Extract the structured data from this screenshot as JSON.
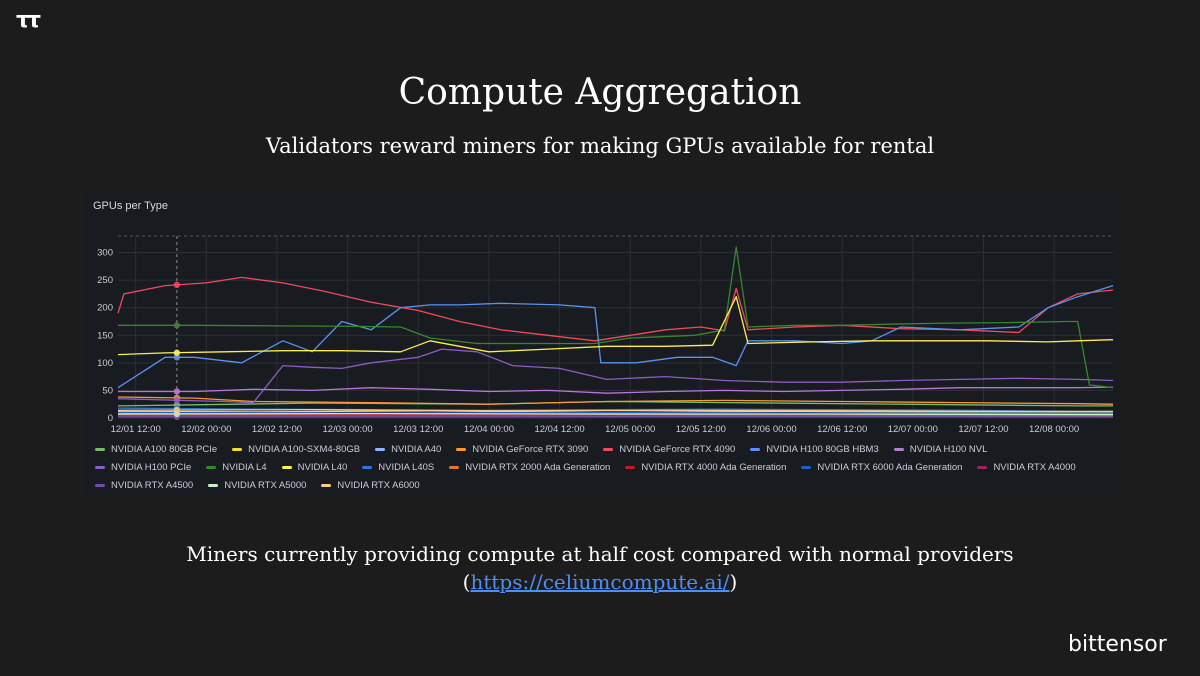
{
  "slide": {
    "logo_mark": "ττ",
    "title": "Compute Aggregation",
    "subtitle": "Validators reward miners for making GPUs available for rental",
    "footer_line1": "Miners currently providing compute at half cost compared with normal providers",
    "footer_paren_open": "(",
    "footer_link": "https://celiumcompute.ai/",
    "footer_paren_close": ")",
    "brand": "bittensor"
  },
  "chart_data": {
    "type": "line",
    "title": "GPUs per Type",
    "xlabel": "",
    "ylabel": "",
    "ylim": [
      0,
      330
    ],
    "y_ticks": [
      0,
      50,
      100,
      150,
      200,
      250,
      300
    ],
    "x_range_hours": [
      -3,
      166
    ],
    "x_ticks": [
      "12/01 12:00",
      "12/02 00:00",
      "12/02 12:00",
      "12/03 00:00",
      "12/03 12:00",
      "12/04 00:00",
      "12/04 12:00",
      "12/05 00:00",
      "12/05 12:00",
      "12/06 00:00",
      "12/06 12:00",
      "12/07 00:00",
      "12/07 12:00",
      "12/08 00:00"
    ],
    "grid": true,
    "legend_position": "bottom",
    "series": [
      {
        "name": "NVIDIA A100 80GB PCIe",
        "color": "#73bf69",
        "points": [
          [
            -3,
            22
          ],
          [
            10,
            24
          ],
          [
            30,
            27
          ],
          [
            60,
            25
          ],
          [
            80,
            30
          ],
          [
            100,
            28
          ],
          [
            130,
            25
          ],
          [
            160,
            22
          ],
          [
            166,
            22
          ]
        ]
      },
      {
        "name": "NVIDIA A100-SXM4-80GB",
        "color": "#fade2a",
        "points": [
          [
            -3,
            12
          ],
          [
            20,
            11
          ],
          [
            50,
            13
          ],
          [
            80,
            10
          ],
          [
            110,
            12
          ],
          [
            140,
            11
          ],
          [
            166,
            10
          ]
        ]
      },
      {
        "name": "NVIDIA A40",
        "color": "#8ab8ff",
        "points": [
          [
            -3,
            8
          ],
          [
            30,
            9
          ],
          [
            60,
            7
          ],
          [
            90,
            8
          ],
          [
            120,
            9
          ],
          [
            150,
            8
          ],
          [
            166,
            7
          ]
        ]
      },
      {
        "name": "NVIDIA GeForce RTX 3090",
        "color": "#ff9830",
        "points": [
          [
            -3,
            38
          ],
          [
            10,
            36
          ],
          [
            20,
            30
          ],
          [
            40,
            28
          ],
          [
            60,
            25
          ],
          [
            80,
            30
          ],
          [
            100,
            32
          ],
          [
            120,
            30
          ],
          [
            140,
            28
          ],
          [
            160,
            26
          ],
          [
            166,
            25
          ]
        ]
      },
      {
        "name": "NVIDIA GeForce RTX 4090",
        "color": "#f2495c",
        "points": [
          [
            -3,
            190
          ],
          [
            -2,
            225
          ],
          [
            5,
            240
          ],
          [
            12,
            245
          ],
          [
            18,
            255
          ],
          [
            25,
            245
          ],
          [
            32,
            230
          ],
          [
            40,
            210
          ],
          [
            48,
            195
          ],
          [
            55,
            175
          ],
          [
            62,
            160
          ],
          [
            70,
            150
          ],
          [
            78,
            140
          ],
          [
            84,
            150
          ],
          [
            90,
            160
          ],
          [
            96,
            165
          ],
          [
            100,
            158
          ],
          [
            102,
            235
          ],
          [
            104,
            160
          ],
          [
            112,
            165
          ],
          [
            120,
            168
          ],
          [
            130,
            162
          ],
          [
            140,
            160
          ],
          [
            150,
            155
          ],
          [
            155,
            200
          ],
          [
            160,
            225
          ],
          [
            166,
            232
          ]
        ]
      },
      {
        "name": "NVIDIA H100 80GB HBM3",
        "color": "#5794f2",
        "points": [
          [
            -3,
            55
          ],
          [
            5,
            110
          ],
          [
            10,
            110
          ],
          [
            18,
            100
          ],
          [
            25,
            140
          ],
          [
            30,
            120
          ],
          [
            35,
            175
          ],
          [
            40,
            160
          ],
          [
            45,
            200
          ],
          [
            50,
            205
          ],
          [
            55,
            205
          ],
          [
            62,
            208
          ],
          [
            72,
            205
          ],
          [
            78,
            200
          ],
          [
            79,
            100
          ],
          [
            85,
            100
          ],
          [
            92,
            110
          ],
          [
            98,
            110
          ],
          [
            102,
            95
          ],
          [
            104,
            140
          ],
          [
            112,
            140
          ],
          [
            120,
            135
          ],
          [
            125,
            140
          ],
          [
            130,
            165
          ],
          [
            140,
            160
          ],
          [
            150,
            165
          ],
          [
            155,
            200
          ],
          [
            160,
            220
          ],
          [
            166,
            240
          ]
        ]
      },
      {
        "name": "NVIDIA H100 NVL",
        "color": "#b877d9",
        "points": [
          [
            -3,
            48
          ],
          [
            10,
            48
          ],
          [
            20,
            52
          ],
          [
            30,
            50
          ],
          [
            40,
            55
          ],
          [
            50,
            52
          ],
          [
            60,
            48
          ],
          [
            70,
            50
          ],
          [
            80,
            45
          ],
          [
            90,
            48
          ],
          [
            100,
            50
          ],
          [
            110,
            48
          ],
          [
            120,
            50
          ],
          [
            130,
            52
          ],
          [
            140,
            55
          ],
          [
            150,
            55
          ],
          [
            160,
            55
          ],
          [
            166,
            56
          ]
        ]
      },
      {
        "name": "NVIDIA H100 PCIe",
        "color": "#8f5cc4",
        "points": [
          [
            -3,
            35
          ],
          [
            15,
            30
          ],
          [
            20,
            28
          ],
          [
            25,
            95
          ],
          [
            30,
            92
          ],
          [
            35,
            90
          ],
          [
            40,
            100
          ],
          [
            48,
            110
          ],
          [
            52,
            125
          ],
          [
            58,
            120
          ],
          [
            64,
            95
          ],
          [
            72,
            90
          ],
          [
            80,
            70
          ],
          [
            90,
            75
          ],
          [
            100,
            68
          ],
          [
            110,
            65
          ],
          [
            120,
            65
          ],
          [
            130,
            68
          ],
          [
            140,
            70
          ],
          [
            150,
            72
          ],
          [
            160,
            70
          ],
          [
            166,
            68
          ]
        ]
      },
      {
        "name": "NVIDIA L4",
        "color": "#37872d",
        "points": [
          [
            -3,
            168
          ],
          [
            10,
            168
          ],
          [
            25,
            167
          ],
          [
            38,
            166
          ],
          [
            45,
            165
          ],
          [
            50,
            145
          ],
          [
            58,
            135
          ],
          [
            68,
            135
          ],
          [
            78,
            135
          ],
          [
            84,
            145
          ],
          [
            95,
            150
          ],
          [
            100,
            160
          ],
          [
            102,
            310
          ],
          [
            104,
            165
          ],
          [
            112,
            168
          ],
          [
            120,
            168
          ],
          [
            128,
            170
          ],
          [
            138,
            172
          ],
          [
            148,
            173
          ],
          [
            158,
            175
          ],
          [
            160,
            175
          ],
          [
            162,
            60
          ],
          [
            166,
            55
          ]
        ]
      },
      {
        "name": "NVIDIA L40",
        "color": "#ffee52",
        "points": [
          [
            -3,
            115
          ],
          [
            5,
            118
          ],
          [
            15,
            120
          ],
          [
            25,
            122
          ],
          [
            35,
            122
          ],
          [
            45,
            120
          ],
          [
            50,
            140
          ],
          [
            55,
            130
          ],
          [
            60,
            120
          ],
          [
            70,
            125
          ],
          [
            80,
            130
          ],
          [
            90,
            130
          ],
          [
            98,
            132
          ],
          [
            102,
            220
          ],
          [
            104,
            135
          ],
          [
            115,
            138
          ],
          [
            125,
            140
          ],
          [
            135,
            140
          ],
          [
            145,
            140
          ],
          [
            155,
            138
          ],
          [
            160,
            140
          ],
          [
            166,
            142
          ]
        ]
      },
      {
        "name": "NVIDIA L40S",
        "color": "#3274d9",
        "points": [
          [
            -3,
            18
          ],
          [
            20,
            16
          ],
          [
            40,
            15
          ],
          [
            60,
            14
          ],
          [
            80,
            15
          ],
          [
            100,
            16
          ],
          [
            120,
            15
          ],
          [
            140,
            14
          ],
          [
            160,
            12
          ],
          [
            166,
            12
          ]
        ]
      },
      {
        "name": "NVIDIA RTX 2000 Ada Generation",
        "color": "#e0752d",
        "points": [
          [
            -3,
            4
          ],
          [
            40,
            4
          ],
          [
            80,
            3
          ],
          [
            120,
            4
          ],
          [
            166,
            4
          ]
        ]
      },
      {
        "name": "NVIDIA RTX 4000 Ada Generation",
        "color": "#c4162a",
        "points": [
          [
            -3,
            6
          ],
          [
            40,
            6
          ],
          [
            80,
            5
          ],
          [
            120,
            6
          ],
          [
            166,
            5
          ]
        ]
      },
      {
        "name": "NVIDIA RTX 6000 Ada Generation",
        "color": "#1f60c4",
        "points": [
          [
            -3,
            10
          ],
          [
            40,
            9
          ],
          [
            80,
            10
          ],
          [
            120,
            9
          ],
          [
            166,
            9
          ]
        ]
      },
      {
        "name": "NVIDIA RTX A4000",
        "color": "#a02063",
        "points": [
          [
            -3,
            3
          ],
          [
            50,
            3
          ],
          [
            100,
            2
          ],
          [
            166,
            2
          ]
        ]
      },
      {
        "name": "NVIDIA RTX A4500",
        "color": "#6e4fa8",
        "points": [
          [
            -3,
            2
          ],
          [
            60,
            2
          ],
          [
            120,
            3
          ],
          [
            166,
            2
          ]
        ]
      },
      {
        "name": "NVIDIA RTX A5000",
        "color": "#c8f2c2",
        "points": [
          [
            -3,
            7
          ],
          [
            40,
            8
          ],
          [
            80,
            7
          ],
          [
            120,
            7
          ],
          [
            166,
            6
          ]
        ]
      },
      {
        "name": "NVIDIA RTX A6000",
        "color": "#ffcb7d",
        "points": [
          [
            -3,
            14
          ],
          [
            30,
            15
          ],
          [
            60,
            13
          ],
          [
            90,
            14
          ],
          [
            120,
            13
          ],
          [
            150,
            12
          ],
          [
            166,
            12
          ]
        ]
      }
    ]
  }
}
